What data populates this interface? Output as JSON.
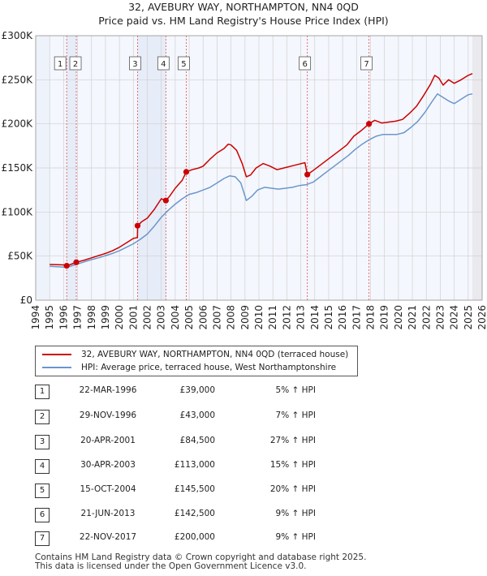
{
  "colors": {
    "property": "#cc0000",
    "hpi": "#6b96cc",
    "shade": "#e6ecf8",
    "marker_line": "#e06060",
    "grid": "#d0d0d0"
  },
  "chart_data": {
    "type": "line",
    "title": "32, AVEBURY WAY, NORTHAMPTON, NN4 0QD",
    "subtitle": "Price paid vs. HM Land Registry's House Price Index (HPI)",
    "xlim": [
      1994,
      2026
    ],
    "ylim": [
      0,
      300000
    ],
    "x_ticks": [
      "1994",
      "1995",
      "1996",
      "1997",
      "1998",
      "1999",
      "2000",
      "2001",
      "2002",
      "2003",
      "2004",
      "2005",
      "2006",
      "2007",
      "2008",
      "2009",
      "2010",
      "2011",
      "2012",
      "2013",
      "2014",
      "2015",
      "2016",
      "2017",
      "2018",
      "2019",
      "2020",
      "2021",
      "2022",
      "2023",
      "2024",
      "2025",
      "2026"
    ],
    "y_ticks": [
      {
        "value": 0,
        "label": "£0"
      },
      {
        "value": 50000,
        "label": "£50K"
      },
      {
        "value": 100000,
        "label": "£100K"
      },
      {
        "value": 150000,
        "label": "£150K"
      },
      {
        "value": 200000,
        "label": "£200K"
      },
      {
        "value": 250000,
        "label": "£250K"
      },
      {
        "value": 300000,
        "label": "£300K"
      }
    ],
    "series": [
      {
        "name": "32, AVEBURY WAY, NORTHAMPTON, NN4 0QD (terraced house)",
        "color": "#cc0000",
        "points": [
          [
            1995,
            40500
          ],
          [
            1995.5,
            40200
          ],
          [
            1996,
            40000
          ],
          [
            1996.22,
            39000
          ],
          [
            1996.5,
            40500
          ],
          [
            1996.91,
            43000
          ],
          [
            1997.5,
            45500
          ],
          [
            1998,
            48000
          ],
          [
            1998.5,
            50500
          ],
          [
            1999,
            53000
          ],
          [
            1999.5,
            56000
          ],
          [
            2000,
            60000
          ],
          [
            2000.5,
            65000
          ],
          [
            2001,
            70000
          ],
          [
            2001.29,
            71000
          ],
          [
            2001.31,
            84500
          ],
          [
            2001.6,
            89000
          ],
          [
            2002,
            93000
          ],
          [
            2002.5,
            103000
          ],
          [
            2003,
            115000
          ],
          [
            2003.33,
            113000
          ],
          [
            2003.6,
            118000
          ],
          [
            2004,
            127000
          ],
          [
            2004.5,
            136000
          ],
          [
            2004.79,
            145500
          ],
          [
            2005.2,
            148000
          ],
          [
            2005.7,
            150000
          ],
          [
            2006,
            152000
          ],
          [
            2006.5,
            160000
          ],
          [
            2007,
            167000
          ],
          [
            2007.5,
            172000
          ],
          [
            2007.8,
            177000
          ],
          [
            2008,
            176000
          ],
          [
            2008.4,
            170000
          ],
          [
            2008.8,
            155000
          ],
          [
            2009.1,
            140000
          ],
          [
            2009.4,
            142000
          ],
          [
            2009.8,
            150000
          ],
          [
            2010.3,
            155000
          ],
          [
            2010.8,
            152000
          ],
          [
            2011.3,
            148000
          ],
          [
            2011.8,
            150000
          ],
          [
            2012.3,
            152000
          ],
          [
            2012.8,
            154000
          ],
          [
            2013.3,
            156000
          ],
          [
            2013.47,
            142500
          ],
          [
            2013.8,
            146000
          ],
          [
            2014.3,
            152000
          ],
          [
            2014.8,
            158000
          ],
          [
            2015.3,
            164000
          ],
          [
            2015.8,
            170000
          ],
          [
            2016.3,
            176000
          ],
          [
            2016.8,
            186000
          ],
          [
            2017.3,
            192000
          ],
          [
            2017.89,
            200000
          ],
          [
            2018.3,
            204000
          ],
          [
            2018.8,
            201000
          ],
          [
            2019.3,
            202000
          ],
          [
            2019.8,
            203000
          ],
          [
            2020.3,
            205000
          ],
          [
            2020.8,
            212000
          ],
          [
            2021.3,
            220000
          ],
          [
            2021.8,
            232000
          ],
          [
            2022.3,
            245000
          ],
          [
            2022.6,
            255000
          ],
          [
            2022.9,
            252000
          ],
          [
            2023.2,
            244000
          ],
          [
            2023.6,
            250000
          ],
          [
            2024,
            246000
          ],
          [
            2024.5,
            250000
          ],
          [
            2025,
            255000
          ],
          [
            2025.3,
            257000
          ]
        ]
      },
      {
        "name": "HPI: Average price, terraced house, West Northamptonshire",
        "color": "#6b96cc",
        "points": [
          [
            1995,
            38500
          ],
          [
            1995.5,
            38000
          ],
          [
            1996,
            37500
          ],
          [
            1996.5,
            38500
          ],
          [
            1997,
            41000
          ],
          [
            1997.5,
            43500
          ],
          [
            1998,
            46000
          ],
          [
            1998.5,
            48000
          ],
          [
            1999,
            50500
          ],
          [
            1999.5,
            53000
          ],
          [
            2000,
            56000
          ],
          [
            2000.5,
            60000
          ],
          [
            2001,
            64000
          ],
          [
            2001.5,
            69000
          ],
          [
            2002,
            75000
          ],
          [
            2002.5,
            84000
          ],
          [
            2003,
            94000
          ],
          [
            2003.5,
            102000
          ],
          [
            2004,
            109000
          ],
          [
            2004.5,
            115000
          ],
          [
            2005,
            120000
          ],
          [
            2005.5,
            122000
          ],
          [
            2006,
            125000
          ],
          [
            2006.5,
            128000
          ],
          [
            2007,
            133000
          ],
          [
            2007.5,
            138000
          ],
          [
            2007.9,
            141000
          ],
          [
            2008.3,
            140000
          ],
          [
            2008.7,
            133000
          ],
          [
            2009.1,
            113000
          ],
          [
            2009.5,
            118000
          ],
          [
            2009.9,
            125000
          ],
          [
            2010.4,
            128000
          ],
          [
            2010.9,
            127000
          ],
          [
            2011.4,
            126000
          ],
          [
            2011.9,
            127000
          ],
          [
            2012.4,
            128000
          ],
          [
            2012.9,
            130000
          ],
          [
            2013.4,
            131000
          ],
          [
            2013.9,
            134000
          ],
          [
            2014.4,
            140000
          ],
          [
            2014.9,
            146000
          ],
          [
            2015.4,
            152000
          ],
          [
            2015.9,
            158000
          ],
          [
            2016.4,
            164000
          ],
          [
            2016.9,
            171000
          ],
          [
            2017.4,
            177000
          ],
          [
            2017.9,
            182000
          ],
          [
            2018.4,
            186000
          ],
          [
            2018.9,
            188000
          ],
          [
            2019.4,
            188000
          ],
          [
            2019.9,
            188000
          ],
          [
            2020.4,
            190000
          ],
          [
            2020.9,
            196000
          ],
          [
            2021.4,
            203000
          ],
          [
            2021.9,
            213000
          ],
          [
            2022.4,
            225000
          ],
          [
            2022.8,
            234000
          ],
          [
            2023.2,
            230000
          ],
          [
            2023.6,
            226000
          ],
          [
            2024,
            223000
          ],
          [
            2024.5,
            228000
          ],
          [
            2025,
            233000
          ],
          [
            2025.3,
            234000
          ]
        ]
      }
    ],
    "shaded_periods": [
      [
        1996.22,
        1996.91
      ],
      [
        2001.3,
        2003.33
      ],
      [
        2004.79,
        2004.79
      ],
      [
        2013.47,
        2013.47
      ],
      [
        2017.89,
        2017.89
      ]
    ],
    "transactions": [
      {
        "num": "1",
        "date": "22-MAR-1996",
        "price": "£39,000",
        "hpi": "5% ↑ HPI",
        "x": 1996.22,
        "y": 39000
      },
      {
        "num": "2",
        "date": "29-NOV-1996",
        "price": "£43,000",
        "hpi": "7% ↑ HPI",
        "x": 1996.91,
        "y": 43000
      },
      {
        "num": "3",
        "date": "20-APR-2001",
        "price": "£84,500",
        "hpi": "27% ↑ HPI",
        "x": 2001.3,
        "y": 84500
      },
      {
        "num": "4",
        "date": "30-APR-2003",
        "price": "£113,000",
        "hpi": "15% ↑ HPI",
        "x": 2003.33,
        "y": 113000
      },
      {
        "num": "5",
        "date": "15-OCT-2004",
        "price": "£145,500",
        "hpi": "20% ↑ HPI",
        "x": 2004.79,
        "y": 145500
      },
      {
        "num": "6",
        "date": "21-JUN-2013",
        "price": "£142,500",
        "hpi": "9% ↑ HPI",
        "x": 2013.47,
        "y": 142500
      },
      {
        "num": "7",
        "date": "22-NOV-2017",
        "price": "£200,000",
        "hpi": "9% ↑ HPI",
        "x": 2017.89,
        "y": 200000
      }
    ],
    "legend": [
      {
        "label": "32, AVEBURY WAY, NORTHAMPTON, NN4 0QD (terraced house)",
        "color": "#cc0000"
      },
      {
        "label": "HPI: Average price, terraced house, West Northamptonshire",
        "color": "#6b96cc"
      }
    ]
  },
  "footer": {
    "line1": "Contains HM Land Registry data © Crown copyright and database right 2025.",
    "line2": "This data is licensed under the Open Government Licence v3.0."
  }
}
